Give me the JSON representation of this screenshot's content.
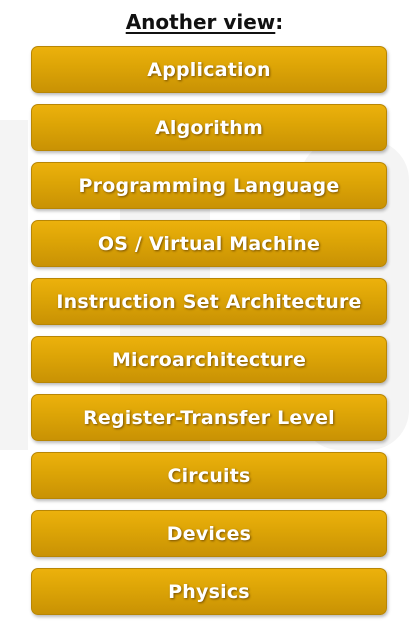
{
  "heading": {
    "main": "Another view",
    "suffix": ":"
  },
  "layers": [
    {
      "label": "Application"
    },
    {
      "label": "Algorithm"
    },
    {
      "label": "Programming Language"
    },
    {
      "label": "OS / Virtual Machine"
    },
    {
      "label": "Instruction Set Architecture"
    },
    {
      "label": "Microarchitecture"
    },
    {
      "label": "Register-Transfer Level"
    },
    {
      "label": "Circuits"
    },
    {
      "label": "Devices"
    },
    {
      "label": "Physics"
    }
  ],
  "colors": {
    "box_top": "#ecb10c",
    "box_bottom": "#c99204",
    "label": "#ffffff",
    "title": "#111111"
  }
}
